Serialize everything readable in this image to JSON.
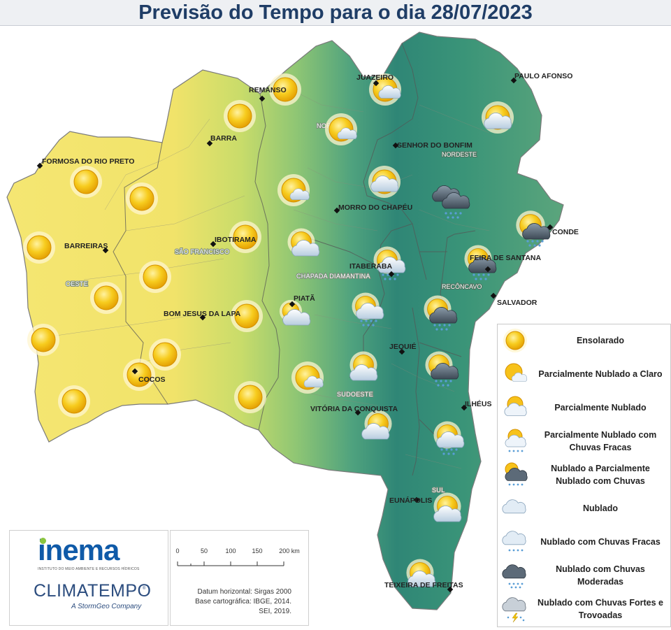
{
  "title": "Previsão do Tempo para o dia 28/07/2023",
  "cities": [
    {
      "name": "JUAZEIRO"
    },
    {
      "name": "PAULO AFONSO"
    },
    {
      "name": "REMANSO"
    },
    {
      "name": "BARRA"
    },
    {
      "name": "SENHOR DO BONFIM"
    },
    {
      "name": "FORMOSA DO RIO PRETO"
    },
    {
      "name": "MORRO DO CHAPÉU"
    },
    {
      "name": "CONDE"
    },
    {
      "name": "IBOTIRAMA"
    },
    {
      "name": "BARREIRAS"
    },
    {
      "name": "FEIRA DE SANTANA"
    },
    {
      "name": "ITABERABA"
    },
    {
      "name": "PIATÃ"
    },
    {
      "name": "SALVADOR"
    },
    {
      "name": "BOM JESUS DA LAPA"
    },
    {
      "name": "JEQUIÉ"
    },
    {
      "name": "COCOS"
    },
    {
      "name": "ILHÉUS"
    },
    {
      "name": "VITÓRIA DA CONQUISTA"
    },
    {
      "name": "EUNÁPOLIS"
    },
    {
      "name": "TEIXEIRA DE FREITAS"
    }
  ],
  "regions": [
    {
      "name": "NORTE"
    },
    {
      "name": "NORDESTE"
    },
    {
      "name": "SÃO FRANCISCO"
    },
    {
      "name": "CHAPADA DIAMANTINA"
    },
    {
      "name": "RECÔNCAVO"
    },
    {
      "name": "OESTE"
    },
    {
      "name": "SUDOESTE"
    },
    {
      "name": "SUL"
    }
  ],
  "forecast_icons": [
    {
      "condition": "Parcialmente Nublado"
    },
    {
      "condition": "Parcialmente Nublado"
    },
    {
      "condition": "Ensolarado"
    },
    {
      "condition": "Ensolarado"
    },
    {
      "condition": "Parcialmente Nublado a Claro"
    },
    {
      "condition": "Parcialmente Nublado"
    },
    {
      "condition": "Ensolarado"
    },
    {
      "condition": "Ensolarado"
    },
    {
      "condition": "Parcialmente Nublado com Chuvas Fracas"
    },
    {
      "condition": "Parcialmente Nublado a Claro"
    },
    {
      "condition": "Nublado com Chuvas Moderadas"
    },
    {
      "condition": "Nublado a Parcialmente Nublado com Chuvas"
    },
    {
      "condition": "Ensolarado"
    },
    {
      "condition": "Ensolarado"
    },
    {
      "condition": "Parcialmente Nublado"
    },
    {
      "condition": "Ensolarado"
    },
    {
      "condition": "Parcialmente Nublado com Chuvas Fracas"
    },
    {
      "condition": "Nublado a Parcialmente Nublado com Chuvas"
    },
    {
      "condition": "Ensolarado"
    },
    {
      "condition": "Ensolarado"
    },
    {
      "condition": "Parcialmente Nublado"
    },
    {
      "condition": "Parcialmente Nublado com Chuvas Fracas"
    },
    {
      "condition": "Nublado a Parcialmente Nublado com Chuvas"
    },
    {
      "condition": "Ensolarado"
    },
    {
      "condition": "Ensolarado"
    },
    {
      "condition": "Ensolarado"
    },
    {
      "condition": "Parcialmente Nublado"
    },
    {
      "condition": "Nublado a Parcialmente Nublado com Chuvas"
    },
    {
      "condition": "Parcialmente Nublado a Claro"
    },
    {
      "condition": "Ensolarado"
    },
    {
      "condition": "Parcialmente Nublado"
    },
    {
      "condition": "Parcialmente Nublado com Chuvas Fracas"
    },
    {
      "condition": "Ensolarado"
    },
    {
      "condition": "Parcialmente Nublado"
    },
    {
      "condition": "Parcialmente Nublado"
    }
  ],
  "legend": [
    {
      "label": "Ensolarado",
      "icon": "sun-icon"
    },
    {
      "label": "Parcialmente Nublado a Claro",
      "icon": "sun-small-cloud-icon"
    },
    {
      "label": "Parcialmente Nublado",
      "icon": "sun-cloud-icon"
    },
    {
      "label": "Parcialmente Nublado com Chuvas Fracas",
      "icon": "sun-cloud-light-rain-icon"
    },
    {
      "label": "Nublado a Parcialmente Nublado com Chuvas",
      "icon": "sun-dark-cloud-rain-icon"
    },
    {
      "label": "Nublado",
      "icon": "cloud-icon"
    },
    {
      "label": "Nublado com Chuvas Fracas",
      "icon": "cloud-light-rain-icon"
    },
    {
      "label": "Nublado com Chuvas Moderadas",
      "icon": "dark-cloud-rain-icon"
    },
    {
      "label": "Nublado com Chuvas Fortes e Trovoadas",
      "icon": "storm-cloud-lightning-icon"
    }
  ],
  "scale": {
    "ticks": [
      "0",
      "50",
      "100",
      "150",
      "200 km"
    ]
  },
  "datum": [
    "Datum horizontal: Sirgas 2000",
    "Base cartográfica: IBGE, 2014.",
    "SEI, 2019."
  ],
  "logos": {
    "inema": "inema",
    "inema_subtitle": "INSTITUTO DO MEIO AMBIENTE E RECURSOS HÍDRICOS",
    "climatempo": "CLIMATEMPO",
    "climatempo_subtitle": "A StormGeo Company"
  },
  "colors": {
    "dry": "#f4e66a",
    "mid": "#9ccb6a",
    "wet": "#2f8a78",
    "sun": "#f2b705",
    "title": "#1f3d66"
  }
}
